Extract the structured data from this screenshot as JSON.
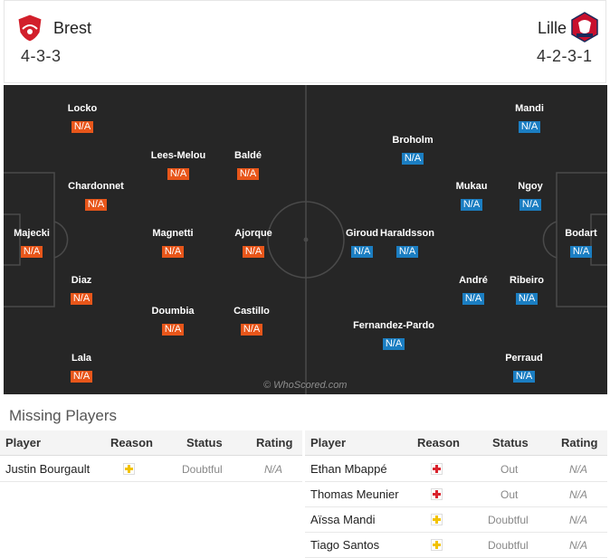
{
  "home": {
    "name": "Brest",
    "formation": "4-3-3",
    "color": "#e8561a",
    "players": [
      {
        "name": "Majecki",
        "rating": "N/A"
      },
      {
        "name": "Locko",
        "rating": "N/A"
      },
      {
        "name": "Chardonnet",
        "rating": "N/A"
      },
      {
        "name": "Diaz",
        "rating": "N/A"
      },
      {
        "name": "Lala",
        "rating": "N/A"
      },
      {
        "name": "Lees-Melou",
        "rating": "N/A"
      },
      {
        "name": "Magnetti",
        "rating": "N/A"
      },
      {
        "name": "Doumbia",
        "rating": "N/A"
      },
      {
        "name": "Baldé",
        "rating": "N/A"
      },
      {
        "name": "Ajorque",
        "rating": "N/A"
      },
      {
        "name": "Castillo",
        "rating": "N/A"
      }
    ]
  },
  "away": {
    "name": "Lille",
    "formation": "4-2-3-1",
    "color": "#1b7ec2",
    "players": [
      {
        "name": "Bodart",
        "rating": "N/A"
      },
      {
        "name": "Mandi",
        "rating": "N/A"
      },
      {
        "name": "Ngoy",
        "rating": "N/A"
      },
      {
        "name": "Ribeiro",
        "rating": "N/A"
      },
      {
        "name": "Perraud",
        "rating": "N/A"
      },
      {
        "name": "Mukau",
        "rating": "N/A"
      },
      {
        "name": "André",
        "rating": "N/A"
      },
      {
        "name": "Broholm",
        "rating": "N/A"
      },
      {
        "name": "Haraldsson",
        "rating": "N/A"
      },
      {
        "name": "Fernandez-Pardo",
        "rating": "N/A"
      },
      {
        "name": "Giroud",
        "rating": "N/A"
      }
    ]
  },
  "watermark": "© WhoScored.com",
  "missing": {
    "title": "Missing Players",
    "headers": {
      "player": "Player",
      "reason": "Reason",
      "status": "Status",
      "rating": "Rating"
    },
    "home": [
      {
        "player": "Justin Bourgault",
        "reason": "doubtful-icon",
        "reason_color": "#f2c200",
        "status": "Doubtful",
        "rating": "N/A"
      }
    ],
    "away": [
      {
        "player": "Ethan Mbappé",
        "reason": "injury-icon",
        "reason_color": "#d9232d",
        "status": "Out",
        "rating": "N/A"
      },
      {
        "player": "Thomas Meunier",
        "reason": "injury-icon",
        "reason_color": "#d9232d",
        "status": "Out",
        "rating": "N/A"
      },
      {
        "player": "Aïssa Mandi",
        "reason": "doubtful-icon",
        "reason_color": "#f2c200",
        "status": "Doubtful",
        "rating": "N/A"
      },
      {
        "player": "Tiago Santos",
        "reason": "doubtful-icon",
        "reason_color": "#f2c200",
        "status": "Doubtful",
        "rating": "N/A"
      }
    ]
  }
}
